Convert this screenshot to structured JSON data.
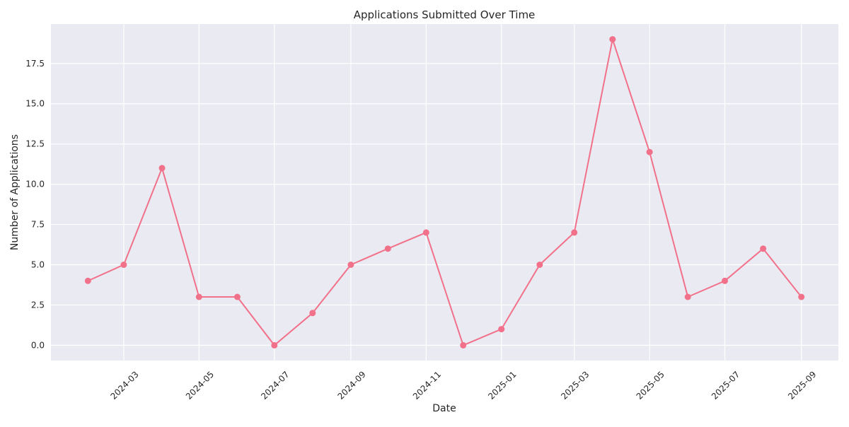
{
  "chart_data": {
    "type": "line",
    "title": "Applications Submitted Over Time",
    "xlabel": "Date",
    "ylabel": "Number of Applications",
    "x": [
      "2024-02-01",
      "2024-03-01",
      "2024-04-01",
      "2024-05-01",
      "2024-06-01",
      "2024-07-01",
      "2024-08-01",
      "2024-09-01",
      "2024-10-01",
      "2024-11-01",
      "2024-12-01",
      "2025-01-01",
      "2025-02-01",
      "2025-03-01",
      "2025-04-01",
      "2025-05-01",
      "2025-06-01",
      "2025-07-01",
      "2025-08-01",
      "2025-09-01"
    ],
    "series": [
      {
        "values": [
          4,
          5,
          11,
          3,
          3,
          0,
          2,
          5,
          6,
          7,
          0,
          1,
          5,
          7,
          19,
          12,
          3,
          4,
          6,
          3
        ]
      }
    ],
    "x_ticks": [
      "2024-03",
      "2024-05",
      "2024-07",
      "2024-09",
      "2024-11",
      "2025-01",
      "2025-03",
      "2025-05",
      "2025-07",
      "2025-09"
    ],
    "y_ticks": [
      "0.0",
      "2.5",
      "5.0",
      "7.5",
      "10.0",
      "12.5",
      "15.0",
      "17.5"
    ],
    "ylim": [
      -0.95,
      19.95
    ],
    "xlim": [
      "2024-01-02",
      "2025-10-01"
    ],
    "grid": true,
    "legend": "none",
    "line_color": "#f2718a",
    "plot_background": "#eaeaf2",
    "grid_color": "#ffffff"
  }
}
